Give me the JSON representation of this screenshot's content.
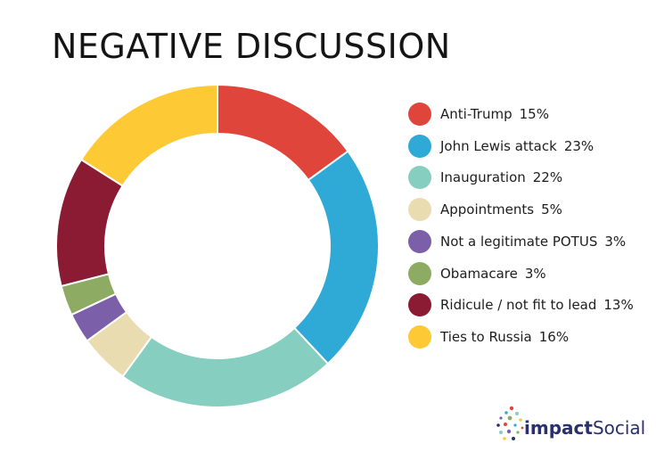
{
  "title": "NEGATIVE DISCUSSION",
  "chart_data": {
    "type": "pie",
    "style": "donut",
    "title": "NEGATIVE DISCUSSION",
    "legend_position": "right",
    "series": [
      {
        "label": "Anti-Trump",
        "value": 15,
        "display": "15%",
        "color": "#e0453b"
      },
      {
        "label": "John Lewis attack",
        "value": 23,
        "display": "23%",
        "color": "#2fa9d6"
      },
      {
        "label": "Inauguration",
        "value": 22,
        "display": "22%",
        "color": "#86cfc0"
      },
      {
        "label": "Appointments",
        "value": 5,
        "display": "5%",
        "color": "#e8dcb0"
      },
      {
        "label": "Not a legitimate POTUS",
        "value": 3,
        "display": "3%",
        "color": "#7b5fa8"
      },
      {
        "label": "Obamacare",
        "value": 3,
        "display": "3%",
        "color": "#8dab62"
      },
      {
        "label": "Ridicule / not fit to lead",
        "value": 13,
        "display": "13%",
        "color": "#8b1a33"
      },
      {
        "label": "Ties to Russia",
        "value": 16,
        "display": "16%",
        "color": "#fdc934"
      }
    ]
  },
  "brand": {
    "logo_part1": "impact",
    "logo_part2": "Social",
    "text_color": "#2a2f6e",
    "dot_colors": [
      "#e0453b",
      "#2fa9d6",
      "#86cfc0",
      "#7b5fa8",
      "#8dab62",
      "#fdc934",
      "#2a2f6e"
    ]
  }
}
